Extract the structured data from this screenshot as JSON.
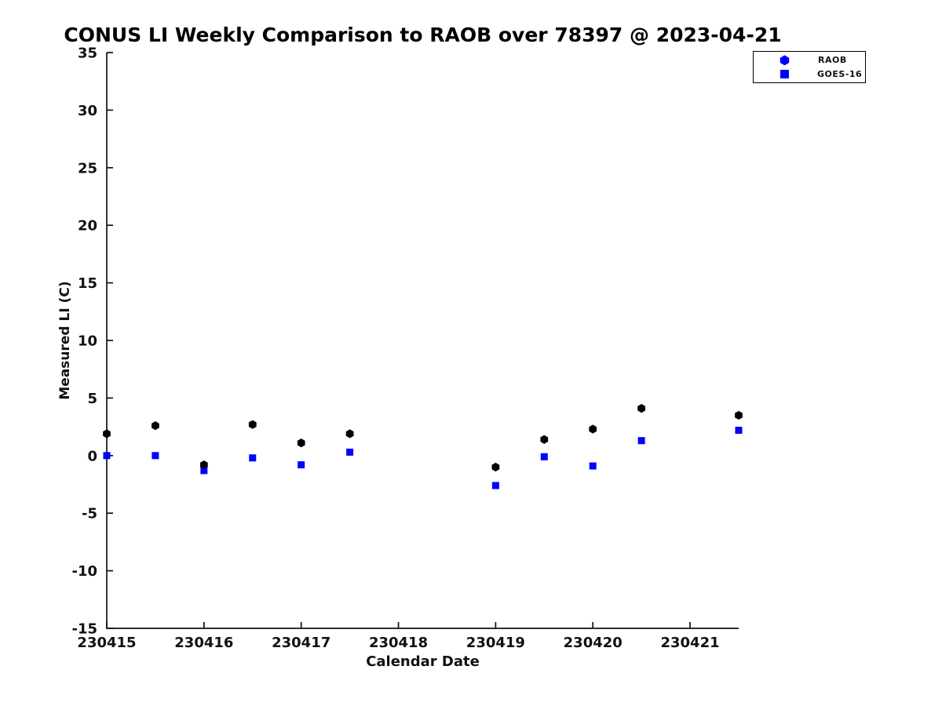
{
  "figure": {
    "background": "#ffffff",
    "text_color": "#111111"
  },
  "chart_data": {
    "type": "scatter",
    "title": "CONUS LI Weekly Comparison to RAOB over 78397 @ 2023-04-21",
    "xlabel": "Calendar Date",
    "ylabel": "Measured LI (C)",
    "xlim": [
      230415,
      230421.5
    ],
    "ylim": [
      -15,
      35
    ],
    "xticks": [
      230415,
      230416,
      230417,
      230418,
      230419,
      230420,
      230421
    ],
    "yticks": [
      35,
      30,
      25,
      20,
      15,
      10,
      5,
      0,
      -5,
      -10,
      -15
    ],
    "grid": false,
    "legend_position": "top-right",
    "x": [
      230415.0,
      230415.5,
      230416.0,
      230416.5,
      230417.0,
      230417.5,
      230419.0,
      230419.5,
      230420.0,
      230420.5,
      230421.5
    ],
    "series": [
      {
        "name": "RAOB",
        "marker": "hexagon",
        "color": "#000000",
        "legend_color": "#0000ff",
        "values": [
          1.9,
          2.6,
          -0.8,
          2.7,
          1.1,
          1.9,
          -1.0,
          1.4,
          2.3,
          4.1,
          3.5
        ]
      },
      {
        "name": "GOES-16",
        "marker": "square",
        "color": "#0000ff",
        "legend_color": "#0000ff",
        "values": [
          0.0,
          0.0,
          -1.3,
          -0.2,
          -0.8,
          0.3,
          -2.6,
          -0.1,
          -0.9,
          1.3,
          2.2
        ]
      }
    ]
  }
}
